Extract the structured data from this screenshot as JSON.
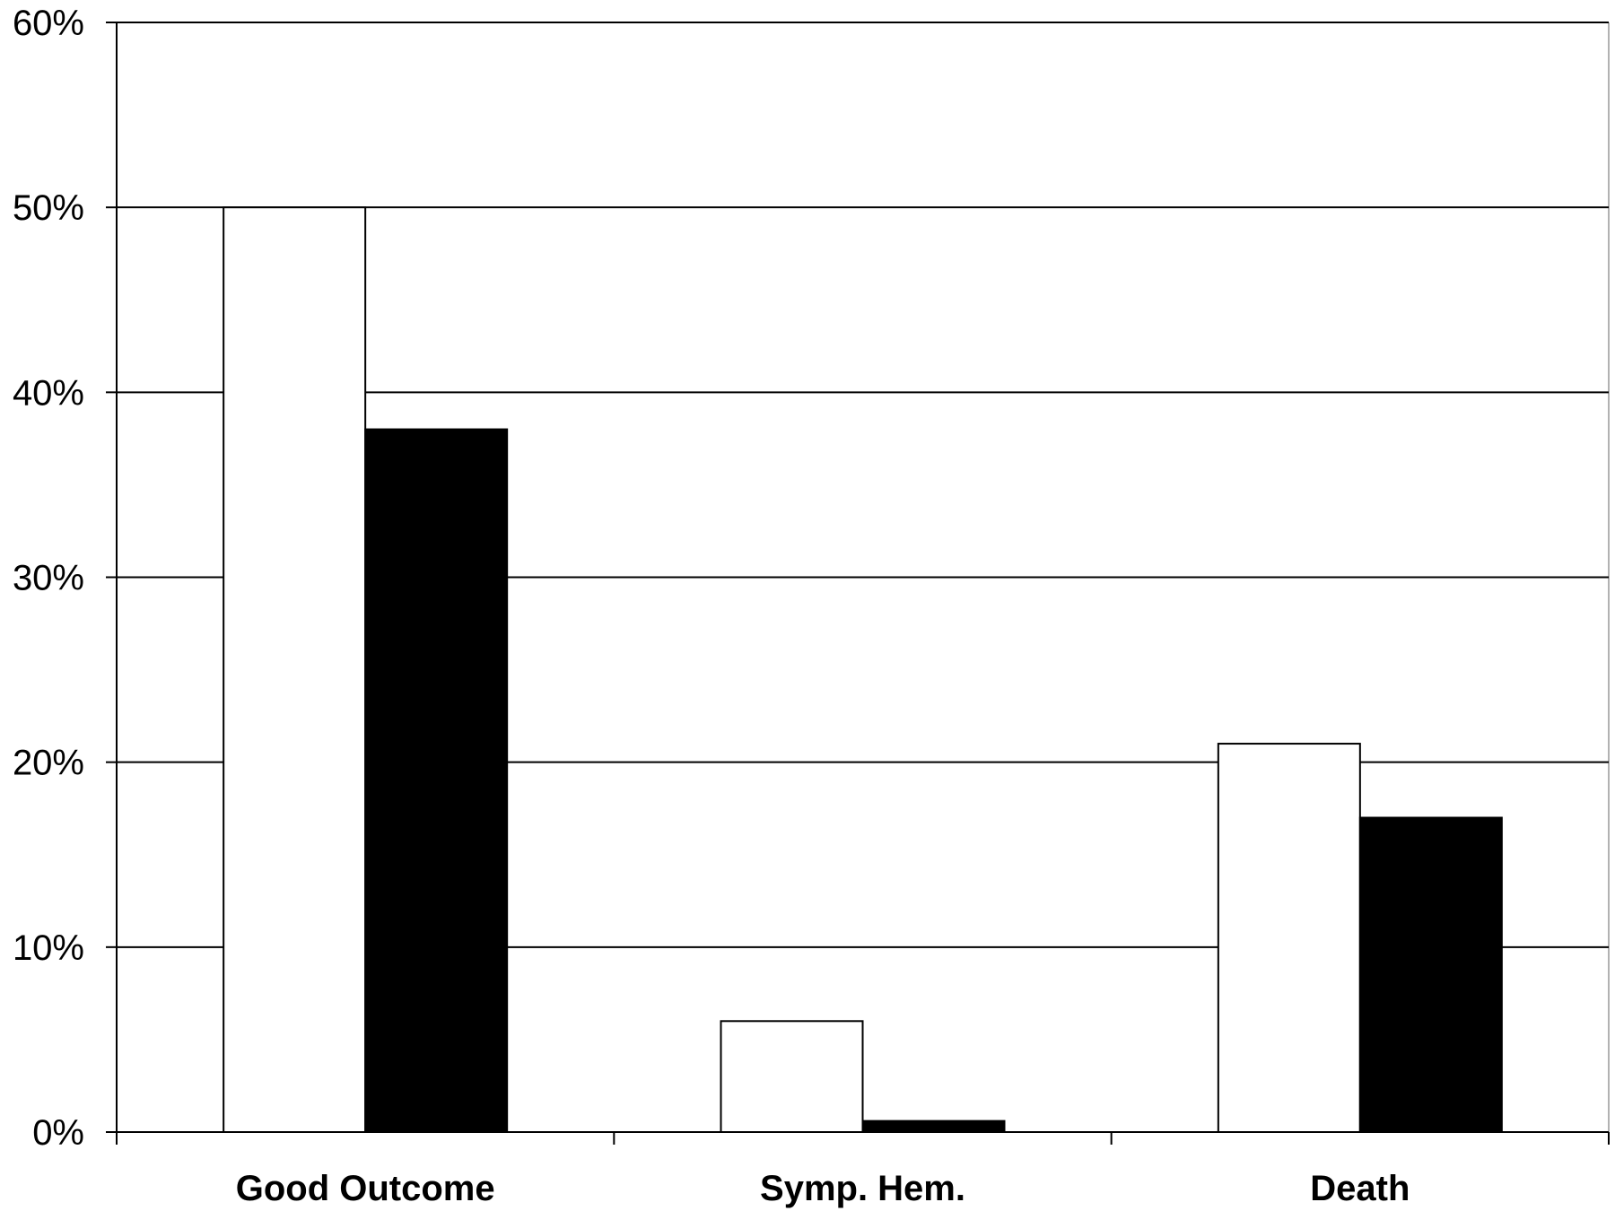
{
  "chart_data": {
    "type": "bar",
    "title": "",
    "xlabel": "",
    "ylabel": "",
    "categories": [
      "Good Outcome",
      "Symp. Hem.",
      "Death"
    ],
    "series": [
      {
        "values": [
          50,
          6,
          21
        ],
        "color": "#ffffff"
      },
      {
        "values": [
          38,
          0.6,
          17
        ],
        "color": "#000000"
      }
    ],
    "ylim": [
      0,
      60
    ],
    "yticks": [
      0,
      10,
      20,
      30,
      40,
      50,
      60
    ],
    "ytick_labels": [
      "0%",
      "10%",
      "20%",
      "30%",
      "40%",
      "50%",
      "60%"
    ],
    "grid": true,
    "legend": "none",
    "colors": {
      "axis": "#000000",
      "grid": "#000000",
      "outline": "#000000"
    }
  }
}
